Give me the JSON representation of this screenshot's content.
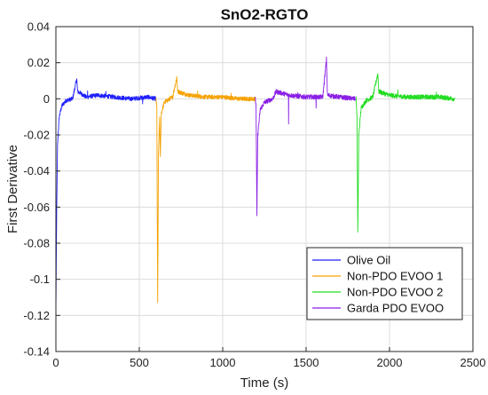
{
  "chart_data": {
    "type": "line",
    "title": "SnO2-RGTO",
    "xlabel": "Time (s)",
    "ylabel": "First Derivative",
    "xlim": [
      0,
      2500
    ],
    "ylim": [
      -0.14,
      0.04
    ],
    "x_ticks": [
      0,
      500,
      1000,
      1500,
      2000,
      2500
    ],
    "x_tick_labels": [
      "0",
      "500",
      "1000",
      "1500",
      "2000",
      "2500"
    ],
    "y_ticks": [
      -0.14,
      -0.12,
      -0.1,
      -0.08,
      -0.06,
      -0.04,
      -0.02,
      0,
      0.02,
      0.04
    ],
    "y_tick_labels": [
      "-0.14",
      "-0.12",
      "-0.1",
      "-0.08",
      "-0.06",
      "-0.04",
      "-0.02",
      "0",
      "0.02",
      "0.04"
    ],
    "grid": true,
    "legend_position": "lower-right",
    "series": [
      {
        "name": "Olive Oil",
        "color": "#1f1fff",
        "points": [
          [
            0,
            -0.118
          ],
          [
            5,
            -0.06
          ],
          [
            10,
            -0.025
          ],
          [
            20,
            -0.01
          ],
          [
            35,
            -0.004
          ],
          [
            60,
            -0.001
          ],
          [
            100,
            0.0
          ],
          [
            125,
            0.011
          ],
          [
            130,
            0.004
          ],
          [
            150,
            0.003
          ],
          [
            180,
            0.001
          ],
          [
            250,
            0.002
          ],
          [
            350,
            0.001
          ],
          [
            450,
            0.0
          ],
          [
            550,
            0.001
          ],
          [
            600,
            0.0
          ]
        ],
        "noise": 0.0012,
        "spikes": [
          [
            190,
            0.005
          ],
          [
            300,
            0.003
          ],
          [
            520,
            -0.003
          ]
        ]
      },
      {
        "name": "Non-PDO EVOO 1",
        "color": "#f5a200",
        "points": [
          [
            600,
            0.0
          ],
          [
            605,
            -0.005
          ],
          [
            610,
            -0.114
          ],
          [
            615,
            -0.03
          ],
          [
            622,
            -0.01
          ],
          [
            626,
            -0.033
          ],
          [
            632,
            -0.008
          ],
          [
            650,
            -0.002
          ],
          [
            700,
            0.001
          ],
          [
            725,
            0.012
          ],
          [
            730,
            0.004
          ],
          [
            800,
            0.002
          ],
          [
            900,
            0.001
          ],
          [
            1000,
            0.001
          ],
          [
            1100,
            0.0
          ],
          [
            1195,
            0.0
          ]
        ],
        "noise": 0.0012,
        "spikes": [
          [
            850,
            0.004
          ],
          [
            1050,
            0.003
          ]
        ]
      },
      {
        "name": "Non-PDO EVOO 2",
        "color": "#22dd22",
        "points": [
          [
            1800,
            0.0
          ],
          [
            1805,
            -0.01
          ],
          [
            1810,
            -0.075
          ],
          [
            1816,
            -0.02
          ],
          [
            1830,
            -0.005
          ],
          [
            1860,
            -0.001
          ],
          [
            1900,
            0.001
          ],
          [
            1930,
            0.014
          ],
          [
            1936,
            0.004
          ],
          [
            2000,
            0.002
          ],
          [
            2100,
            0.001
          ],
          [
            2200,
            0.001
          ],
          [
            2300,
            0.001
          ],
          [
            2390,
            0.0
          ]
        ],
        "noise": 0.0013,
        "spikes": [
          [
            2050,
            0.004
          ],
          [
            2280,
            0.004
          ]
        ]
      },
      {
        "name": "Garda PDO EVOO",
        "color": "#8a1fe6",
        "points": [
          [
            1195,
            0.0
          ],
          [
            1200,
            -0.004
          ],
          [
            1205,
            -0.066
          ],
          [
            1210,
            -0.02
          ],
          [
            1225,
            -0.006
          ],
          [
            1250,
            -0.002
          ],
          [
            1300,
            0.0
          ],
          [
            1320,
            0.004
          ],
          [
            1400,
            0.002
          ],
          [
            1500,
            0.001
          ],
          [
            1600,
            0.001
          ],
          [
            1622,
            0.022
          ],
          [
            1628,
            0.002
          ],
          [
            1700,
            0.001
          ],
          [
            1795,
            0.0
          ]
        ],
        "noise": 0.0013,
        "spikes": [
          [
            1395,
            -0.013
          ],
          [
            1560,
            -0.004
          ],
          [
            1450,
            0.004
          ]
        ]
      }
    ]
  }
}
